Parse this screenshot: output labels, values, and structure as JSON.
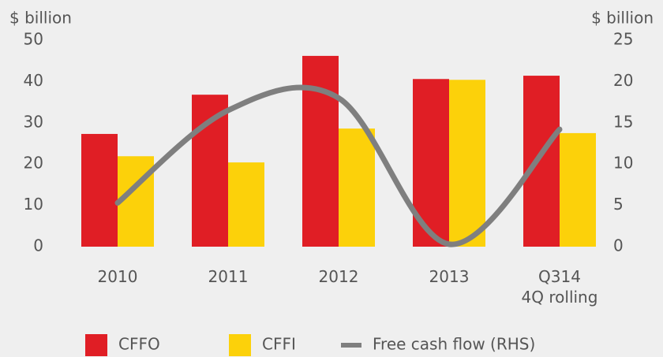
{
  "chart_data": {
    "type": "bar",
    "y_label": "$ billion",
    "y2_label": "$ billion",
    "categories": [
      "2010",
      "2011",
      "2012",
      "2013",
      "Q314\n4Q rolling"
    ],
    "series": [
      {
        "name": "CFFO",
        "color": "#e01e25",
        "type": "bar",
        "values": [
          27.3,
          36.8,
          46.2,
          40.6,
          41.4
        ]
      },
      {
        "name": "CFFI",
        "color": "#fcd10a",
        "type": "bar",
        "values": [
          21.9,
          20.4,
          28.6,
          40.4,
          27.5
        ]
      },
      {
        "name": "Free cash flow (RHS)",
        "color": "#7f7f7f",
        "type": "line",
        "axis": "y2",
        "values": [
          5.3,
          16.5,
          18.0,
          0.3,
          14.2
        ]
      }
    ],
    "ylim": [
      0,
      50
    ],
    "yticks": [
      0,
      10,
      20,
      30,
      40,
      50
    ],
    "y2lim": [
      0,
      25
    ],
    "y2ticks": [
      0,
      5,
      10,
      15,
      20,
      25
    ],
    "grid": false,
    "legend": "bottom"
  }
}
